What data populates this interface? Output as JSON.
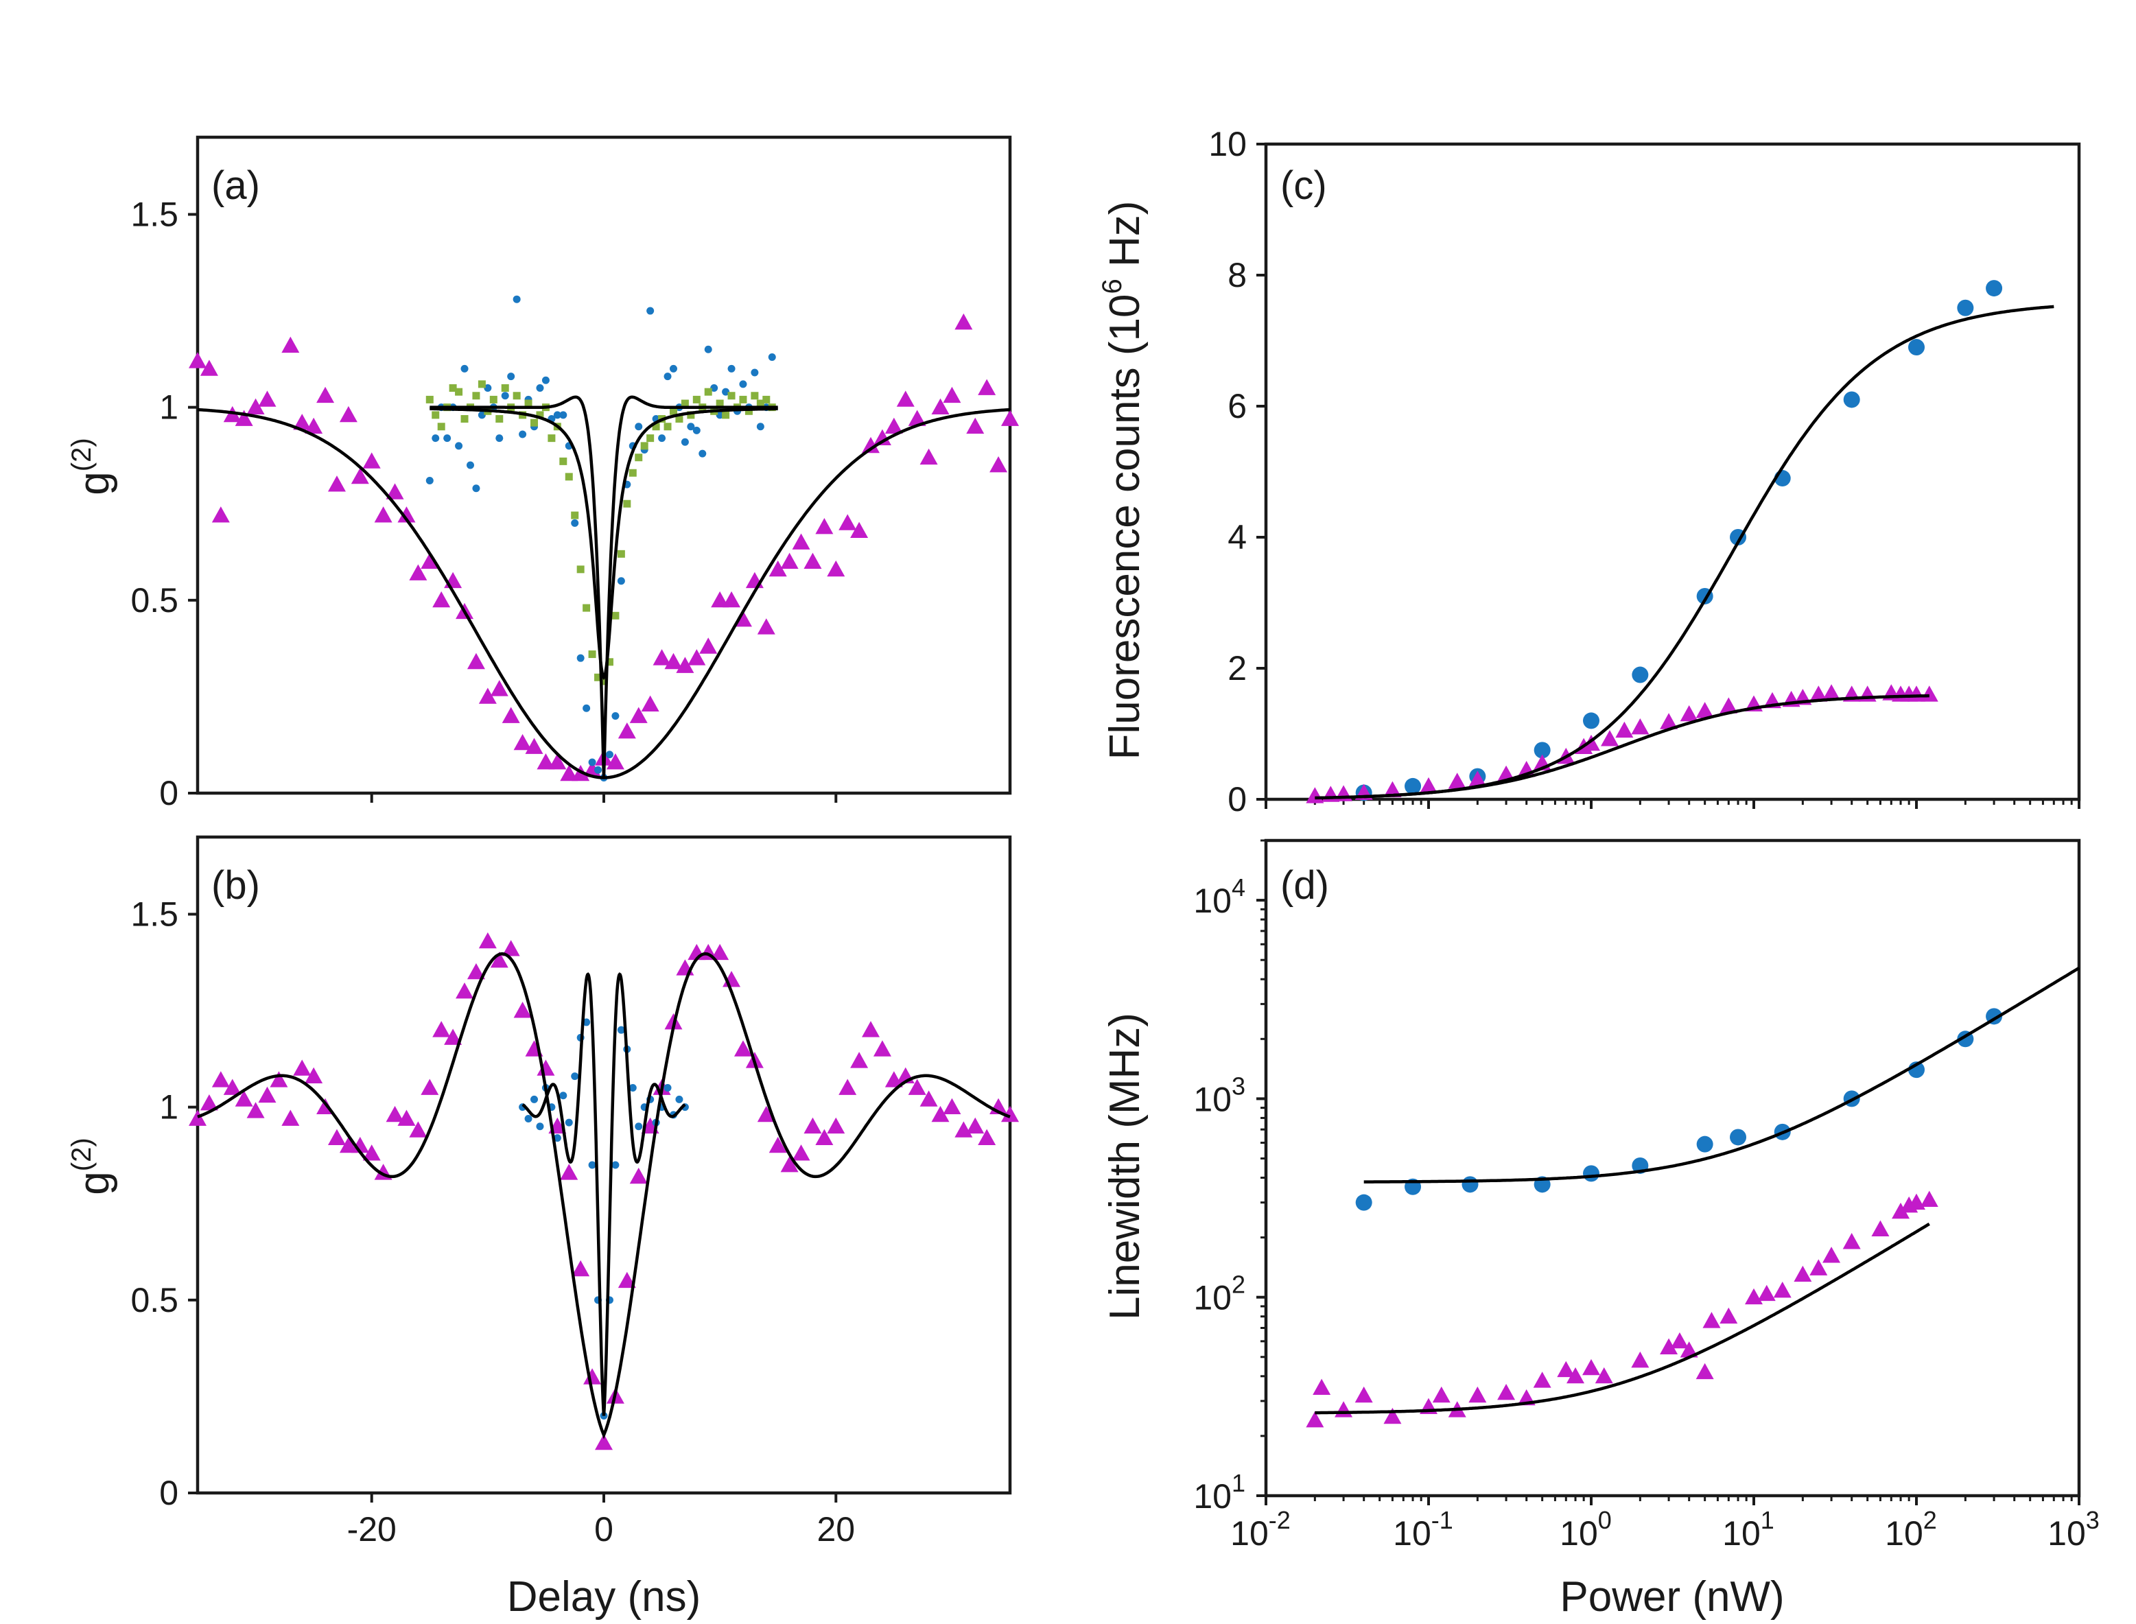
{
  "colors": {
    "magenta": "#c21bc9",
    "blue": "#1a78c2",
    "green": "#86b13d",
    "fit": "#000000"
  },
  "chart_data": [
    {
      "id": "a",
      "type": "scatter",
      "panel_label": "(a)",
      "xlabel": "Delay (ns)",
      "ylabel": "g",
      "ylabel_sup": "(2)",
      "xlim": [
        -35,
        35
      ],
      "ylim": [
        0,
        1.7
      ],
      "yticks": [
        0,
        0.5,
        1,
        1.5
      ],
      "ytick_labels": [
        "0",
        "0.5",
        "1",
        "1.5"
      ],
      "xticks": [
        -20,
        0,
        20
      ],
      "xtick_labels": [],
      "series": [
        {
          "name": "magenta-triangles",
          "marker": "triangle",
          "color": "#c21bc9",
          "x": [
            -35,
            -34,
            -33,
            -32,
            -31,
            -30,
            -29,
            -27,
            -26,
            -25,
            -24,
            -23,
            -22,
            -21,
            -20,
            -19,
            -18,
            -17,
            -16,
            -15,
            -14,
            -13,
            -12,
            -11,
            -10,
            -9,
            -8,
            -7,
            -6,
            -5,
            -4,
            -3,
            -2,
            -1,
            0,
            1,
            2,
            3,
            4,
            5,
            6,
            7,
            8,
            9,
            10,
            11,
            12,
            13,
            14,
            15,
            16,
            17,
            18,
            19,
            20,
            21,
            22,
            23,
            24,
            25,
            26,
            27,
            28,
            29,
            30,
            31,
            32,
            33,
            34,
            35
          ],
          "y": [
            1.12,
            1.1,
            0.72,
            0.98,
            0.97,
            1.0,
            1.02,
            1.16,
            0.96,
            0.95,
            1.03,
            0.8,
            0.98,
            0.82,
            0.86,
            0.72,
            0.78,
            0.72,
            0.57,
            0.6,
            0.5,
            0.55,
            0.47,
            0.34,
            0.25,
            0.27,
            0.2,
            0.13,
            0.12,
            0.08,
            0.08,
            0.05,
            0.05,
            0.06,
            0.09,
            0.08,
            0.16,
            0.2,
            0.23,
            0.35,
            0.34,
            0.33,
            0.35,
            0.38,
            0.5,
            0.5,
            0.45,
            0.55,
            0.43,
            0.58,
            0.6,
            0.65,
            0.6,
            0.69,
            0.58,
            0.7,
            0.68,
            0.9,
            0.92,
            0.95,
            1.02,
            0.97,
            0.87,
            1.0,
            1.03,
            1.22,
            0.95,
            1.05,
            0.85,
            0.97
          ]
        },
        {
          "name": "blue-dots",
          "marker": "dot",
          "color": "#1a78c2",
          "x": [
            -15,
            -14.5,
            -14,
            -13.5,
            -13,
            -12.5,
            -12,
            -11.5,
            -11,
            -10.5,
            -10,
            -9.5,
            -9,
            -8.5,
            -8,
            -7.5,
            -7,
            -6.5,
            -6,
            -5.5,
            -5,
            -4.5,
            -4,
            -3.5,
            -3,
            -2.5,
            -2,
            -1.5,
            -1,
            -0.5,
            0,
            0.5,
            1,
            1.5,
            2,
            2.5,
            3,
            3.5,
            4,
            4.5,
            5,
            5.5,
            6,
            6.5,
            7,
            7.5,
            8,
            8.5,
            9,
            9.5,
            10,
            10.5,
            11,
            11.5,
            12,
            12.5,
            13,
            13.5,
            14,
            14.5
          ],
          "y": [
            0.81,
            0.92,
            1.0,
            0.92,
            1.0,
            0.9,
            1.1,
            0.85,
            0.79,
            0.98,
            1.05,
            1.0,
            0.92,
            1.03,
            1.08,
            1.28,
            0.93,
            1.02,
            0.95,
            1.05,
            1.07,
            0.97,
            0.98,
            0.98,
            0.9,
            0.7,
            0.35,
            0.22,
            0.08,
            0.06,
            0.04,
            0.1,
            0.2,
            0.55,
            0.8,
            0.9,
            0.95,
            0.89,
            1.25,
            0.97,
            0.92,
            1.08,
            1.1,
            1.0,
            0.91,
            0.95,
            0.94,
            0.88,
            1.15,
            1.05,
            0.98,
            1.04,
            1.1,
            0.99,
            1.06,
            1.0,
            1.09,
            0.95,
            1.0,
            1.13
          ]
        },
        {
          "name": "green-squares",
          "marker": "square",
          "color": "#86b13d",
          "x": [
            -15,
            -14.5,
            -14,
            -13.5,
            -13,
            -12.5,
            -12,
            -11.5,
            -11,
            -10.5,
            -10,
            -9.5,
            -9,
            -8.5,
            -8,
            -7.5,
            -7,
            -6.5,
            -6,
            -5.5,
            -5,
            -4.5,
            -4,
            -3.5,
            -3,
            -2.5,
            -2,
            -1.5,
            -1,
            -0.5,
            0,
            0.5,
            1,
            1.5,
            2,
            2.5,
            3,
            3.5,
            4,
            4.5,
            5,
            5.5,
            6,
            6.5,
            7,
            7.5,
            8,
            8.5,
            9,
            9.5,
            10,
            10.5,
            11,
            11.5,
            12,
            12.5,
            13,
            13.5,
            14,
            14.5
          ],
          "y": [
            1.02,
            0.98,
            0.95,
            1.0,
            1.05,
            1.04,
            0.97,
            1.0,
            1.03,
            1.06,
            0.99,
            1.02,
            0.97,
            1.05,
            1.0,
            1.03,
            0.98,
            1.01,
            0.96,
            0.98,
            1.0,
            0.92,
            0.95,
            0.86,
            0.82,
            0.72,
            0.58,
            0.48,
            0.36,
            0.3,
            0.29,
            0.34,
            0.46,
            0.62,
            0.75,
            0.83,
            0.87,
            0.9,
            0.92,
            0.95,
            0.97,
            0.95,
            0.99,
            0.97,
            1.01,
            0.98,
            1.02,
            1.0,
            1.04,
            0.99,
            1.01,
            0.98,
            1.03,
            1.0,
            1.02,
            0.99,
            1.03,
            1.01,
            1.02,
            1.0
          ]
        },
        {
          "name": "fit-broad",
          "line": true,
          "func": "gauss-dip",
          "amp": 0.96,
          "sigma": 11.0,
          "xmin": -35,
          "xmax": 35
        },
        {
          "name": "fit-narrow-blue",
          "line": true,
          "func": "osc-dip",
          "amp": 0.96,
          "sigma": 0.8,
          "xmin": -15,
          "xmax": 15
        },
        {
          "name": "fit-narrow-green",
          "line": true,
          "func": "lorentz-dip",
          "amp": 0.7,
          "sigma": 1.1,
          "xmin": -15,
          "xmax": 15
        }
      ]
    },
    {
      "id": "b",
      "type": "scatter",
      "panel_label": "(b)",
      "xlabel": "Delay (ns)",
      "ylabel": "g",
      "ylabel_sup": "(2)",
      "xlim": [
        -35,
        35
      ],
      "ylim": [
        0,
        1.7
      ],
      "yticks": [
        0,
        0.5,
        1,
        1.5
      ],
      "ytick_labels": [
        "0",
        "0.5",
        "1",
        "1.5"
      ],
      "xticks": [
        -20,
        0,
        20
      ],
      "xtick_labels": [
        "-20",
        "0",
        "20"
      ],
      "series": [
        {
          "name": "magenta-triangles",
          "marker": "triangle",
          "color": "#c21bc9",
          "x": [
            -35,
            -34,
            -33,
            -32,
            -31,
            -30,
            -29,
            -28,
            -27,
            -26,
            -25,
            -24,
            -23,
            -22,
            -21,
            -20,
            -19,
            -18,
            -17,
            -16,
            -15,
            -14,
            -13,
            -12,
            -11,
            -10,
            -9,
            -8,
            -7,
            -6,
            -5,
            -4,
            -3,
            -2,
            -1,
            0,
            1,
            2,
            3,
            4,
            5,
            6,
            7,
            8,
            9,
            10,
            11,
            12,
            13,
            14,
            15,
            16,
            17,
            18,
            19,
            20,
            21,
            22,
            23,
            24,
            25,
            26,
            27,
            28,
            29,
            30,
            31,
            32,
            33,
            34,
            35
          ],
          "y": [
            0.97,
            1.01,
            1.07,
            1.05,
            1.02,
            0.99,
            1.03,
            1.07,
            0.97,
            1.1,
            1.08,
            1.0,
            0.92,
            0.9,
            0.9,
            0.88,
            0.83,
            0.98,
            0.97,
            0.94,
            1.05,
            1.2,
            1.18,
            1.3,
            1.35,
            1.43,
            1.38,
            1.41,
            1.25,
            1.15,
            1.1,
            0.95,
            0.83,
            0.58,
            0.3,
            0.13,
            0.25,
            0.55,
            0.82,
            0.95,
            1.05,
            1.22,
            1.36,
            1.4,
            1.4,
            1.4,
            1.33,
            1.15,
            1.12,
            0.98,
            0.9,
            0.85,
            0.88,
            0.95,
            0.92,
            0.95,
            1.05,
            1.12,
            1.2,
            1.15,
            1.07,
            1.08,
            1.05,
            1.02,
            0.98,
            1.0,
            0.94,
            0.95,
            0.92,
            1.0,
            0.98
          ]
        },
        {
          "name": "blue-dots",
          "marker": "dot",
          "color": "#1a78c2",
          "x": [
            -7,
            -6.5,
            -6,
            -5.5,
            -5,
            -4.5,
            -4,
            -3.5,
            -3,
            -2.5,
            -2,
            -1.5,
            -1,
            -0.5,
            0,
            0.5,
            1,
            1.5,
            2,
            2.5,
            3,
            3.5,
            4,
            4.5,
            5,
            5.5,
            6,
            6.5,
            7
          ],
          "y": [
            1.0,
            0.97,
            1.02,
            0.95,
            1.05,
            1.0,
            0.92,
            1.03,
            0.96,
            1.08,
            1.18,
            1.22,
            0.85,
            0.5,
            0.2,
            0.5,
            0.85,
            1.2,
            1.15,
            1.05,
            0.95,
            1.0,
            1.02,
            0.96,
            1.0,
            1.05,
            0.98,
            1.02,
            1.0
          ]
        },
        {
          "name": "fit-broad",
          "line": true,
          "func": "sinc-osc",
          "amp": 0.85,
          "xmin": -35,
          "xmax": 35
        },
        {
          "name": "fit-narrow",
          "line": true,
          "func": "fast-osc",
          "amp": 0.8,
          "xmin": -7,
          "xmax": 7
        }
      ]
    },
    {
      "id": "c",
      "type": "scatter",
      "panel_label": "(c)",
      "xlabel": "",
      "ylabel": "Fluorescence counts (10",
      "ylabel_sup": "6",
      "ylabel_tail": " Hz)",
      "xscale": "log",
      "xlim": [
        0.01,
        1000
      ],
      "ylim": [
        0,
        10
      ],
      "yticks": [
        0,
        2,
        4,
        6,
        8,
        10
      ],
      "ytick_labels": [
        "0",
        "2",
        "4",
        "6",
        "8",
        "10"
      ],
      "series": [
        {
          "name": "blue-dots",
          "marker": "dot",
          "color": "#1a78c2",
          "x": [
            0.04,
            0.08,
            0.2,
            0.5,
            1.0,
            2.0,
            5.0,
            8.0,
            15,
            40,
            100,
            200,
            300
          ],
          "y": [
            0.1,
            0.2,
            0.35,
            0.75,
            1.2,
            1.9,
            3.1,
            4.0,
            4.9,
            6.1,
            6.9,
            7.5,
            7.8
          ]
        },
        {
          "name": "magenta-triangles",
          "marker": "triangle",
          "color": "#c21bc9",
          "x": [
            0.02,
            0.025,
            0.03,
            0.04,
            0.06,
            0.1,
            0.15,
            0.2,
            0.3,
            0.4,
            0.5,
            0.7,
            0.9,
            1.0,
            1.3,
            1.6,
            2.0,
            3.0,
            4.0,
            5.0,
            7.0,
            10,
            13,
            17,
            20,
            25,
            30,
            40,
            50,
            70,
            80,
            90,
            100,
            120
          ],
          "y": [
            0.05,
            0.07,
            0.08,
            0.1,
            0.14,
            0.2,
            0.27,
            0.3,
            0.38,
            0.45,
            0.55,
            0.65,
            0.8,
            0.85,
            0.92,
            1.05,
            1.1,
            1.18,
            1.3,
            1.35,
            1.42,
            1.45,
            1.5,
            1.52,
            1.55,
            1.6,
            1.62,
            1.6,
            1.6,
            1.62,
            1.6,
            1.6,
            1.6,
            1.6
          ]
        },
        {
          "name": "fit-blue",
          "line": true,
          "func": "saturation",
          "amp": 7.6,
          "psat": 7.5,
          "xmin": 0.04,
          "xmax": 700
        },
        {
          "name": "fit-magenta",
          "line": true,
          "func": "saturation",
          "amp": 1.6,
          "psat": 1.5,
          "xmin": 0.02,
          "xmax": 120
        }
      ]
    },
    {
      "id": "d",
      "type": "scatter",
      "panel_label": "(d)",
      "xlabel": "Power (nW)",
      "ylabel": "Linewidth (MHz)",
      "xscale": "log",
      "yscale": "log",
      "xlim": [
        0.01,
        1000
      ],
      "ylim": [
        10,
        20000
      ],
      "ytick_labels": [
        "10",
        "10",
        "10",
        "10"
      ],
      "ytick_exps": [
        "1",
        "2",
        "3",
        "4"
      ],
      "xtick_labels": [
        "10",
        "10",
        "10",
        "10",
        "10",
        "10"
      ],
      "xtick_exps": [
        "-2",
        "-1",
        "0",
        "1",
        "2",
        "3"
      ],
      "series": [
        {
          "name": "blue-dots",
          "marker": "dot",
          "color": "#1a78c2",
          "x": [
            0.04,
            0.08,
            0.18,
            0.5,
            1.0,
            2.0,
            5.0,
            8.0,
            15,
            40,
            100,
            200,
            300
          ],
          "y": [
            300,
            360,
            370,
            370,
            420,
            460,
            590,
            640,
            680,
            1000,
            1400,
            2000,
            2600
          ]
        },
        {
          "name": "magenta-triangles",
          "marker": "triangle",
          "color": "#c21bc9",
          "x": [
            0.02,
            0.022,
            0.03,
            0.04,
            0.06,
            0.1,
            0.12,
            0.15,
            0.2,
            0.3,
            0.4,
            0.5,
            0.7,
            0.8,
            1.0,
            1.2,
            2.0,
            3.0,
            3.5,
            4.0,
            5.0,
            5.5,
            7.0,
            10,
            12,
            15,
            20,
            25,
            30,
            40,
            60,
            80,
            90,
            100,
            120
          ],
          "y": [
            24,
            35,
            27,
            32,
            25,
            28,
            32,
            27,
            32,
            33,
            31,
            38,
            43,
            40,
            44,
            40,
            48,
            56,
            60,
            54,
            42,
            76,
            80,
            100,
            104,
            108,
            130,
            140,
            162,
            190,
            220,
            270,
            290,
            300,
            310
          ]
        },
        {
          "name": "fit-blue",
          "line": true,
          "func": "linewidth",
          "g0": 380,
          "psat": 7,
          "xmin": 0.04,
          "xmax": 1000
        },
        {
          "name": "fit-magenta",
          "line": true,
          "func": "linewidth",
          "g0": 26,
          "psat": 1.5,
          "xmin": 0.02,
          "xmax": 120
        }
      ]
    }
  ]
}
